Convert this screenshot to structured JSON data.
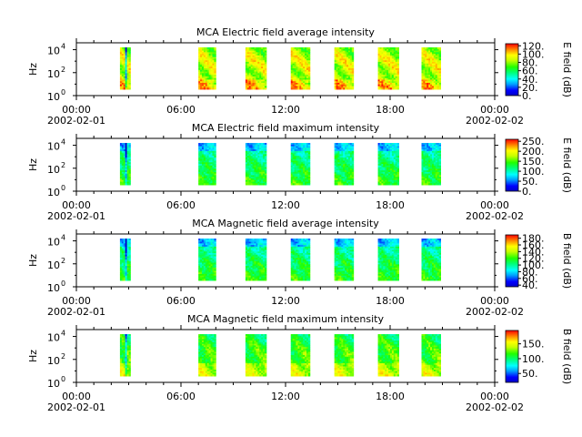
{
  "chart_data": [
    {
      "type": "heatmap",
      "title": "MCA  Electric field average intensity",
      "ylabel": "Hz",
      "y_ticks": [
        {
          "base": "10",
          "exp": "0"
        },
        {
          "base": "10",
          "exp": "2"
        },
        {
          "base": "10",
          "exp": "4"
        }
      ],
      "x_ticks": [
        "00:00",
        "06:00",
        "12:00",
        "18:00",
        "00:00"
      ],
      "x_dates": [
        "2002-02-01",
        "2002-02-02"
      ],
      "colorbar_label": "E field (dB)",
      "colorbar_ticks": [
        "0.",
        "20.",
        "40.",
        "60.",
        "80.",
        "100.",
        "120."
      ],
      "colorbar_range": [
        0,
        125
      ],
      "data_segments_hours": [
        [
          2.5,
          3.1
        ],
        [
          7.0,
          8.0
        ],
        [
          9.7,
          10.9
        ],
        [
          12.3,
          13.4
        ],
        [
          14.8,
          15.9
        ],
        [
          17.3,
          18.5
        ],
        [
          19.8,
          20.9
        ]
      ],
      "intensity_level": "high",
      "xlim_hours": [
        0,
        24
      ],
      "ylim_log10": [
        0,
        4.6
      ]
    },
    {
      "type": "heatmap",
      "title": "MCA  Electric field maximum intensity",
      "ylabel": "Hz",
      "y_ticks": [
        {
          "base": "10",
          "exp": "0"
        },
        {
          "base": "10",
          "exp": "2"
        },
        {
          "base": "10",
          "exp": "4"
        }
      ],
      "x_ticks": [
        "00:00",
        "06:00",
        "12:00",
        "18:00",
        "00:00"
      ],
      "x_dates": [
        "2002-02-01",
        "2002-02-02"
      ],
      "colorbar_label": "E field (dB)",
      "colorbar_ticks": [
        "0.",
        "50.",
        "100.",
        "150.",
        "200.",
        "250."
      ],
      "colorbar_range": [
        0,
        260
      ],
      "data_segments_hours": [
        [
          2.5,
          3.1
        ],
        [
          7.0,
          8.0
        ],
        [
          9.7,
          10.9
        ],
        [
          12.3,
          13.4
        ],
        [
          14.8,
          15.9
        ],
        [
          17.3,
          18.5
        ],
        [
          19.8,
          20.9
        ]
      ],
      "intensity_level": "mid",
      "xlim_hours": [
        0,
        24
      ],
      "ylim_log10": [
        0,
        4.6
      ]
    },
    {
      "type": "heatmap",
      "title": "MCA  Magnetic field average intensity",
      "ylabel": "Hz",
      "y_ticks": [
        {
          "base": "10",
          "exp": "0"
        },
        {
          "base": "10",
          "exp": "2"
        },
        {
          "base": "10",
          "exp": "4"
        }
      ],
      "x_ticks": [
        "00:00",
        "06:00",
        "12:00",
        "18:00",
        "00:00"
      ],
      "x_dates": [
        "2002-02-01",
        "2002-02-02"
      ],
      "colorbar_label": "B field (dB)",
      "colorbar_ticks": [
        "40.",
        "60.",
        "80.",
        "100.",
        "120.",
        "140.",
        "160.",
        "180."
      ],
      "colorbar_range": [
        35,
        190
      ],
      "data_segments_hours": [
        [
          2.5,
          3.1
        ],
        [
          7.0,
          8.0
        ],
        [
          9.7,
          10.9
        ],
        [
          12.3,
          13.4
        ],
        [
          14.8,
          15.9
        ],
        [
          17.3,
          18.5
        ],
        [
          19.8,
          20.9
        ]
      ],
      "intensity_level": "mid",
      "xlim_hours": [
        0,
        24
      ],
      "ylim_log10": [
        0,
        4.6
      ]
    },
    {
      "type": "heatmap",
      "title": "MCA  Magnetic field maximum intensity",
      "ylabel": "Hz",
      "y_ticks": [
        {
          "base": "10",
          "exp": "0"
        },
        {
          "base": "10",
          "exp": "2"
        },
        {
          "base": "10",
          "exp": "4"
        }
      ],
      "x_ticks": [
        "00:00",
        "06:00",
        "12:00",
        "18:00",
        "00:00"
      ],
      "x_dates": [
        "2002-02-01",
        "2002-02-02"
      ],
      "colorbar_label": "B field (dB)",
      "colorbar_ticks": [
        "50.",
        "100.",
        "150."
      ],
      "colorbar_range": [
        20,
        195
      ],
      "data_segments_hours": [
        [
          2.5,
          3.1
        ],
        [
          7.0,
          8.0
        ],
        [
          9.7,
          10.9
        ],
        [
          12.3,
          13.4
        ],
        [
          14.8,
          15.9
        ],
        [
          17.3,
          18.5
        ],
        [
          19.8,
          20.9
        ]
      ],
      "intensity_level": "mid-high",
      "xlim_hours": [
        0,
        24
      ],
      "ylim_log10": [
        0,
        4.6
      ]
    }
  ]
}
